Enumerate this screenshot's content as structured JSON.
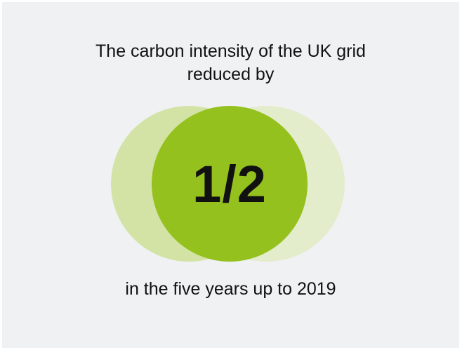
{
  "headline": {
    "line1": "The carbon intensity of the UK grid",
    "line2": "reduced by"
  },
  "highlight": {
    "value": "1/2"
  },
  "footer": {
    "text": "in the five years up to 2019"
  },
  "colors": {
    "background": "#f0f1f3",
    "circle_front": "#95c11f",
    "circle_back_left": "#d3e3a5",
    "circle_back_right": "#e3eccb",
    "text": "#111111"
  }
}
